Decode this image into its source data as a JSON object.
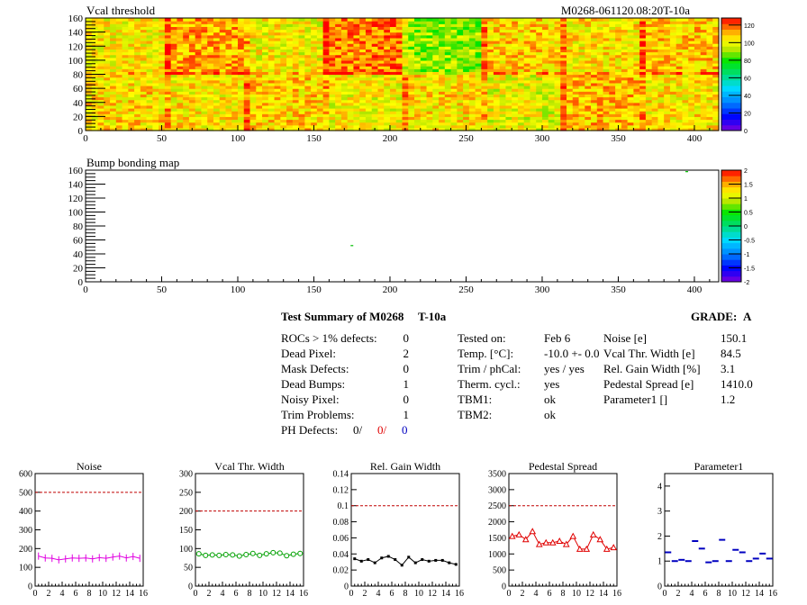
{
  "chart_data": [
    {
      "type": "heatmap",
      "title": "Vcal threshold",
      "top_right_label": "M0268-061120.08:20T-10a",
      "xlim": [
        0,
        416
      ],
      "ylim": [
        0,
        160
      ],
      "xticks": [
        0,
        50,
        100,
        150,
        200,
        250,
        300,
        350,
        400
      ],
      "yticks": [
        0,
        20,
        40,
        60,
        80,
        100,
        120,
        140,
        160
      ],
      "colorbar": {
        "min": 0,
        "max": 128,
        "ticks": [
          0,
          20,
          40,
          60,
          80,
          100,
          120
        ]
      },
      "roc_columns": 8,
      "roc_rows": 2,
      "roc_mean_values": [
        [
          103,
          112,
          102,
          116,
          90,
          107,
          104,
          108
        ],
        [
          106,
          104,
          107,
          102,
          105,
          100,
          110,
          104
        ]
      ]
    },
    {
      "type": "heatmap",
      "title": "Bump bonding map",
      "xlim": [
        0,
        416
      ],
      "ylim": [
        0,
        160
      ],
      "xticks": [
        0,
        50,
        100,
        150,
        200,
        250,
        300,
        350,
        400
      ],
      "yticks": [
        0,
        20,
        40,
        60,
        80,
        100,
        120,
        140,
        160
      ],
      "colorbar": {
        "min": -2,
        "max": 2,
        "ticks": [
          -2,
          -1.5,
          -1,
          -0.5,
          0,
          0.5,
          1,
          1.5,
          2
        ]
      },
      "points": [
        {
          "x": 175,
          "y": 52,
          "value": 0.3
        },
        {
          "x": 395,
          "y": 158,
          "value": 0.3
        }
      ]
    },
    {
      "type": "line",
      "title": "Noise",
      "color": "#e000e0",
      "marker": "cross",
      "ylim": [
        0,
        600
      ],
      "yticks": [
        0,
        100,
        200,
        300,
        400,
        500,
        600
      ],
      "xlim": [
        0,
        16
      ],
      "xticks": [
        0,
        2,
        4,
        6,
        8,
        10,
        12,
        14,
        16
      ],
      "reference_line": 500,
      "x": [
        0.5,
        1.5,
        2.5,
        3.5,
        4.5,
        5.5,
        6.5,
        7.5,
        8.5,
        9.5,
        10.5,
        11.5,
        12.5,
        13.5,
        14.5,
        15.5
      ],
      "values": [
        160,
        150,
        148,
        140,
        145,
        150,
        148,
        150,
        145,
        152,
        148,
        155,
        160,
        150,
        158,
        148
      ]
    },
    {
      "type": "line",
      "title": "Vcal Thr. Width",
      "color": "#00a000",
      "marker": "circle",
      "ylim": [
        0,
        300
      ],
      "yticks": [
        0,
        50,
        100,
        150,
        200,
        250,
        300
      ],
      "xlim": [
        0,
        16
      ],
      "xticks": [
        0,
        2,
        4,
        6,
        8,
        10,
        12,
        14,
        16
      ],
      "reference_line": 200,
      "x": [
        0.5,
        1.5,
        2.5,
        3.5,
        4.5,
        5.5,
        6.5,
        7.5,
        8.5,
        9.5,
        10.5,
        11.5,
        12.5,
        13.5,
        14.5,
        15.5
      ],
      "values": [
        86,
        82,
        83,
        82,
        84,
        83,
        80,
        84,
        87,
        82,
        86,
        89,
        88,
        81,
        85,
        87
      ]
    },
    {
      "type": "line",
      "title": "Rel. Gain Width",
      "color": "#000000",
      "marker": "square",
      "ylim": [
        0,
        0.14
      ],
      "yticks": [
        0,
        0.02,
        0.04,
        0.06,
        0.08,
        0.1,
        0.12,
        0.14
      ],
      "xlim": [
        0,
        16
      ],
      "xticks": [
        0,
        2,
        4,
        6,
        8,
        10,
        12,
        14,
        16
      ],
      "reference_line": 0.1,
      "x": [
        0.5,
        1.5,
        2.5,
        3.5,
        4.5,
        5.5,
        6.5,
        7.5,
        8.5,
        9.5,
        10.5,
        11.5,
        12.5,
        13.5,
        14.5,
        15.5
      ],
      "values": [
        0.034,
        0.031,
        0.033,
        0.029,
        0.035,
        0.037,
        0.033,
        0.026,
        0.036,
        0.029,
        0.033,
        0.031,
        0.032,
        0.032,
        0.029,
        0.027
      ]
    },
    {
      "type": "line",
      "title": "Pedestal Spread",
      "color": "#e00000",
      "marker": "triangle",
      "ylim": [
        0,
        3500
      ],
      "yticks": [
        0,
        500,
        1000,
        1500,
        2000,
        2500,
        3000,
        3500
      ],
      "xlim": [
        0,
        16
      ],
      "xticks": [
        0,
        2,
        4,
        6,
        8,
        10,
        12,
        14,
        16
      ],
      "reference_line": 2500,
      "x": [
        0.5,
        1.5,
        2.5,
        3.5,
        4.5,
        5.5,
        6.5,
        7.5,
        8.5,
        9.5,
        10.5,
        11.5,
        12.5,
        13.5,
        14.5,
        15.5
      ],
      "values": [
        1550,
        1600,
        1450,
        1700,
        1300,
        1350,
        1350,
        1400,
        1300,
        1550,
        1150,
        1150,
        1600,
        1450,
        1150,
        1200
      ]
    },
    {
      "type": "scatter",
      "title": "Parameter1",
      "color": "#0000c0",
      "marker": "hbar",
      "ylim": [
        0,
        4.5
      ],
      "yticks": [
        0,
        1,
        2,
        3,
        4
      ],
      "xlim": [
        0,
        16
      ],
      "xticks": [
        0,
        2,
        4,
        6,
        8,
        10,
        12,
        14,
        16
      ],
      "x": [
        0.5,
        1.5,
        2.5,
        3.5,
        4.5,
        5.5,
        6.5,
        7.5,
        8.5,
        9.5,
        10.5,
        11.5,
        12.5,
        13.5,
        14.5,
        15.5
      ],
      "values": [
        1.35,
        1.0,
        1.05,
        1.0,
        1.8,
        1.5,
        0.95,
        1.0,
        1.85,
        1.0,
        1.45,
        1.35,
        1.0,
        1.1,
        1.3,
        1.1
      ]
    }
  ],
  "summary": {
    "title": "Test Summary of M0268",
    "tag": "T-10a",
    "grade_label": "GRADE:",
    "grade_value": "A",
    "rows": [
      {
        "label": "ROCs > 1% defects:",
        "value": "0"
      },
      {
        "label": "Dead Pixel:",
        "value": "2"
      },
      {
        "label": "Mask Defects:",
        "value": "0"
      },
      {
        "label": "Dead Bumps:",
        "value": "1"
      },
      {
        "label": "Noisy Pixel:",
        "value": "0"
      },
      {
        "label": "Trim Problems:",
        "value": "1"
      }
    ],
    "ph_defects": {
      "label": "PH Defects:",
      "v1": "0/",
      "v2": "0/",
      "v3": "0"
    },
    "test_rows": [
      {
        "label": "Tested on:",
        "value": "Feb 6"
      },
      {
        "label": "Temp. [°C]:",
        "value": "-10.0 +- 0.0"
      },
      {
        "label": "Trim / phCal:",
        "value": "yes / yes"
      },
      {
        "label": "Therm. cycl.:",
        "value": "yes"
      },
      {
        "label": "TBM1:",
        "value": "ok"
      },
      {
        "label": "TBM2:",
        "value": "ok"
      }
    ],
    "result_rows": [
      {
        "label": "Noise [e]",
        "value": "150.1"
      },
      {
        "label": "Vcal Thr. Width [e]",
        "value": "84.5"
      },
      {
        "label": "Rel. Gain Width [%]",
        "value": "3.1"
      },
      {
        "label": "Pedestal Spread [e]",
        "value": "1410.0"
      },
      {
        "label": "Parameter1 []",
        "value": "1.2"
      }
    ]
  }
}
